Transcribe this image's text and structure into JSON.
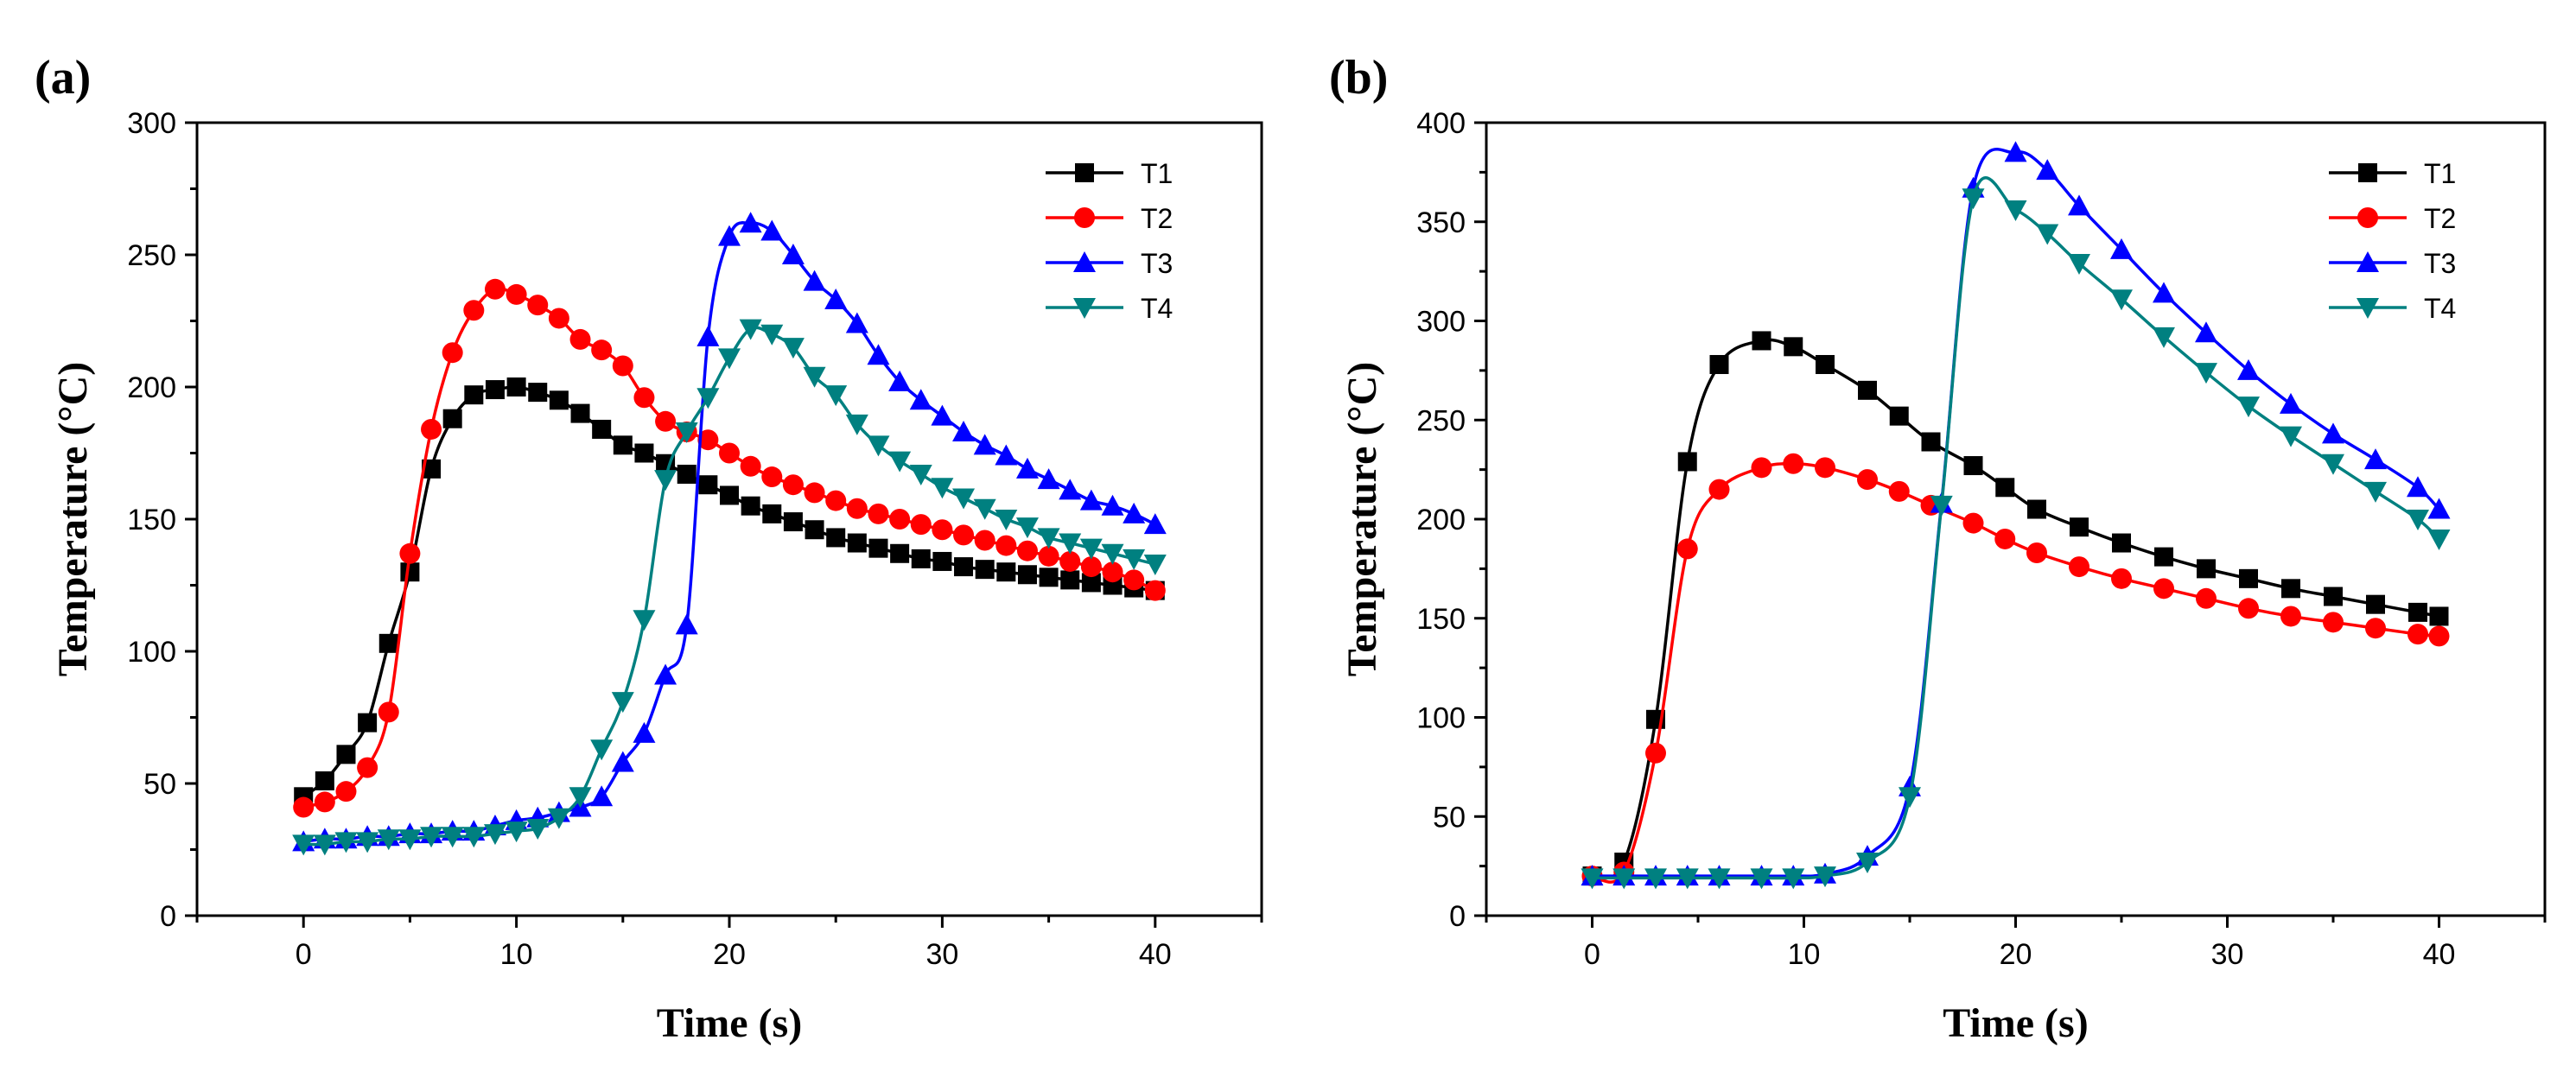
{
  "chart_data": [
    {
      "panel": "(a)",
      "type": "line",
      "xlabel": "Time (s)",
      "ylabel": "Temperature (°C)",
      "xlim": [
        -5,
        45
      ],
      "ylim": [
        0,
        300
      ],
      "xticks": [
        0,
        10,
        20,
        30,
        40
      ],
      "yticks": [
        0,
        50,
        100,
        150,
        200,
        250,
        300
      ],
      "grid": false,
      "legend_position": "top-right",
      "x": [
        0,
        1,
        2,
        3,
        4,
        5,
        6,
        7,
        8,
        9,
        10,
        11,
        12,
        13,
        14,
        15,
        16,
        17,
        18,
        19,
        20,
        21,
        22,
        23,
        24,
        25,
        26,
        27,
        28,
        29,
        30,
        31,
        32,
        33,
        34,
        35,
        36,
        37,
        38,
        39,
        40
      ],
      "series": [
        {
          "name": "T1",
          "color": "#000000",
          "marker": "square",
          "values": [
            45,
            51,
            61,
            73,
            103,
            130,
            169,
            188,
            197,
            199,
            200,
            198,
            195,
            190,
            184,
            178,
            175,
            171,
            167,
            163,
            159,
            155,
            152,
            149,
            146,
            143,
            141,
            139,
            137,
            135,
            134,
            132,
            131,
            130,
            129,
            128,
            127,
            126,
            125,
            124,
            123
          ]
        },
        {
          "name": "T2",
          "color": "#ff0000",
          "marker": "circle",
          "values": [
            41,
            43,
            47,
            56,
            77,
            137,
            184,
            213,
            229,
            237,
            235,
            231,
            226,
            218,
            214,
            208,
            196,
            187,
            183,
            180,
            175,
            170,
            166,
            163,
            160,
            157,
            154,
            152,
            150,
            148,
            146,
            144,
            142,
            140,
            138,
            136,
            134,
            132,
            130,
            127,
            123
          ]
        },
        {
          "name": "T3",
          "color": "#0000ff",
          "marker": "triangle-up",
          "values": [
            28,
            29,
            29,
            30,
            30,
            31,
            31,
            32,
            32,
            34,
            36,
            37,
            39,
            41,
            45,
            58,
            69,
            91,
            110,
            219,
            257,
            262,
            259,
            250,
            240,
            233,
            224,
            212,
            202,
            195,
            189,
            183,
            178,
            174,
            169,
            165,
            161,
            157,
            155,
            152,
            148
          ]
        },
        {
          "name": "T4",
          "color": "#008080",
          "marker": "triangle-down",
          "values": [
            27,
            27,
            28,
            28,
            29,
            29,
            30,
            30,
            30,
            31,
            32,
            33,
            37,
            45,
            63,
            81,
            112,
            165,
            183,
            196,
            211,
            222,
            220,
            215,
            204,
            197,
            186,
            178,
            172,
            167,
            162,
            158,
            154,
            150,
            147,
            143,
            141,
            139,
            137,
            135,
            133
          ]
        }
      ]
    },
    {
      "panel": "(b)",
      "type": "line",
      "xlabel": "Time (s)",
      "ylabel": "Temperature (°C)",
      "xlim": [
        -5,
        45
      ],
      "ylim": [
        0,
        400
      ],
      "xticks": [
        0,
        10,
        20,
        30,
        40
      ],
      "yticks": [
        0,
        50,
        100,
        150,
        200,
        250,
        300,
        350,
        400
      ],
      "grid": false,
      "legend_position": "top-right",
      "series": [
        {
          "name": "T1",
          "color": "#000000",
          "marker": "square",
          "x": [
            0,
            1.5,
            3,
            4.5,
            6,
            8,
            9.5,
            11,
            13,
            14.5,
            16,
            18,
            19.5,
            21,
            23,
            25,
            27,
            29,
            31,
            33,
            35,
            37,
            39,
            40
          ],
          "values": [
            20,
            27,
            99,
            229,
            278,
            290,
            287,
            278,
            265,
            252,
            239,
            227,
            216,
            205,
            196,
            188,
            181,
            175,
            170,
            165,
            161,
            157,
            153,
            151
          ]
        },
        {
          "name": "T2",
          "color": "#ff0000",
          "marker": "circle",
          "x": [
            0,
            1.5,
            3,
            4.5,
            6,
            8,
            9.5,
            11,
            13,
            14.5,
            16,
            18,
            19.5,
            21,
            23,
            25,
            27,
            29,
            31,
            33,
            35,
            37,
            39,
            40
          ],
          "values": [
            20,
            22,
            82,
            185,
            215,
            226,
            228,
            226,
            220,
            214,
            207,
            198,
            190,
            183,
            176,
            170,
            165,
            160,
            155,
            151,
            148,
            145,
            142,
            141
          ]
        },
        {
          "name": "T3",
          "color": "#0000ff",
          "marker": "triangle-up",
          "x": [
            0,
            1.5,
            3,
            4.5,
            6,
            8,
            9.5,
            11,
            13,
            15,
            16.5,
            18,
            20,
            21.5,
            23,
            25,
            27,
            29,
            31,
            33,
            35,
            37,
            39,
            40
          ],
          "values": [
            20,
            20,
            20,
            20,
            20,
            20,
            20,
            21,
            30,
            65,
            208,
            367,
            385,
            376,
            358,
            336,
            314,
            294,
            275,
            258,
            243,
            230,
            216,
            205
          ]
        },
        {
          "name": "T4",
          "color": "#008080",
          "marker": "triangle-down",
          "x": [
            0,
            1.5,
            3,
            4.5,
            6,
            8,
            9.5,
            11,
            13,
            15,
            16.5,
            18,
            20,
            21.5,
            23,
            25,
            27,
            29,
            31,
            33,
            35,
            37,
            39,
            40
          ],
          "values": [
            19,
            19,
            19,
            19,
            19,
            19,
            19,
            20,
            27,
            60,
            207,
            362,
            356,
            344,
            329,
            311,
            292,
            274,
            257,
            242,
            228,
            214,
            200,
            190
          ]
        }
      ]
    }
  ]
}
